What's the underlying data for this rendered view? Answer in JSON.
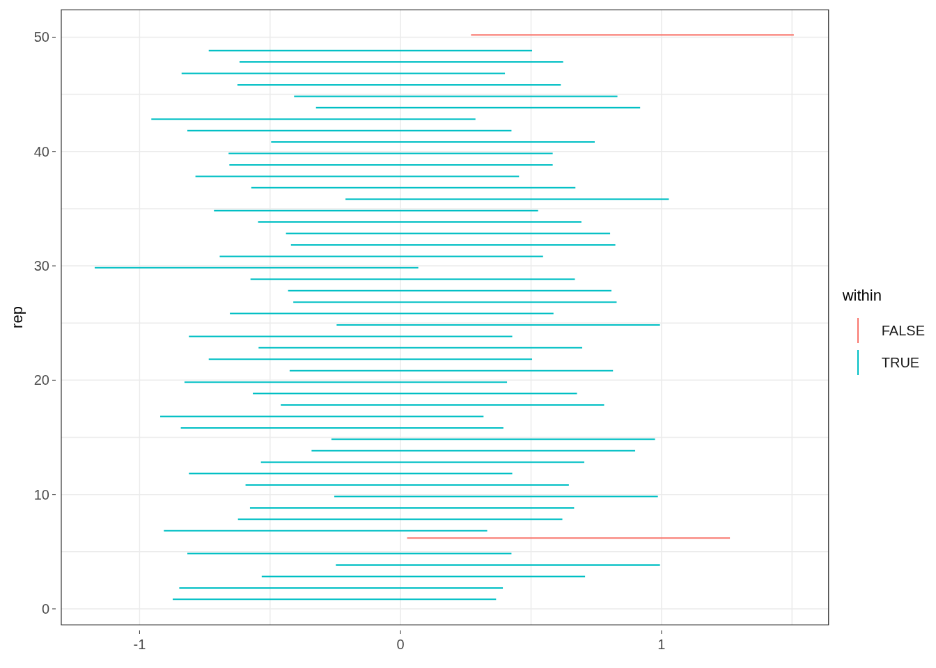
{
  "chart_data": {
    "type": "bar",
    "orientation": "horizontal",
    "ylabel": "rep",
    "legend_title": "within",
    "legend": "right",
    "grid": true,
    "x": [
      1,
      2,
      3,
      4,
      5,
      6,
      7,
      8,
      9,
      10,
      11,
      12,
      13,
      14,
      15,
      16,
      17,
      18,
      19,
      20,
      21,
      22,
      23,
      24,
      25,
      26,
      27,
      28,
      29,
      30,
      31,
      32,
      33,
      34,
      35,
      36,
      37,
      38,
      39,
      40,
      41,
      42,
      43,
      44,
      45,
      46,
      47,
      48,
      49,
      50
    ],
    "xlim": [
      -1.3,
      1.64
    ],
    "ylim": [
      -1.4,
      52.4
    ],
    "xticks": [
      -1,
      {
        "value": -0.5,
        "label": null
      },
      0,
      {
        "value": 0.5,
        "label": null
      },
      1,
      {
        "value": 1.5,
        "label": null
      }
    ],
    "yticks": [
      0,
      {
        "value": 5,
        "label": null
      },
      10,
      {
        "value": 15,
        "label": null
      },
      20,
      {
        "value": 25,
        "label": null
      },
      30,
      {
        "value": 35,
        "label": null
      },
      40,
      {
        "value": 45,
        "label": null
      },
      50
    ],
    "series": [
      {
        "name": "FALSE",
        "color": "#f8766d",
        "base": [
          null,
          null,
          null,
          null,
          null,
          0.025,
          null,
          null,
          null,
          null,
          null,
          null,
          null,
          null,
          null,
          null,
          null,
          null,
          null,
          null,
          null,
          null,
          null,
          null,
          null,
          null,
          null,
          null,
          null,
          null,
          null,
          null,
          null,
          null,
          null,
          null,
          null,
          null,
          null,
          null,
          null,
          null,
          null,
          null,
          null,
          null,
          null,
          null,
          null,
          0.27
        ],
        "values": [
          null,
          null,
          null,
          null,
          null,
          1.237,
          null,
          null,
          null,
          null,
          null,
          null,
          null,
          null,
          null,
          null,
          null,
          null,
          null,
          null,
          null,
          null,
          null,
          null,
          null,
          null,
          null,
          null,
          null,
          null,
          null,
          null,
          null,
          null,
          null,
          null,
          null,
          null,
          null,
          null,
          null,
          null,
          null,
          null,
          null,
          null,
          null,
          null,
          null,
          1.237
        ]
      },
      {
        "name": "TRUE",
        "color": "#00bfc4",
        "base": [
          -0.873,
          -0.848,
          -0.532,
          -0.248,
          -0.817,
          null,
          -0.907,
          -0.623,
          -0.577,
          -0.254,
          -0.594,
          -0.811,
          -0.535,
          -0.341,
          -0.265,
          -0.842,
          -0.921,
          -0.459,
          -0.566,
          -0.828,
          -0.425,
          -0.735,
          -0.544,
          -0.811,
          -0.245,
          -0.654,
          -0.411,
          -0.431,
          -0.575,
          -1.172,
          -0.693,
          -0.42,
          -0.439,
          -0.546,
          -0.715,
          -0.211,
          -0.572,
          -0.786,
          -0.656,
          -0.659,
          -0.496,
          -0.817,
          -0.955,
          -0.324,
          -0.408,
          -0.625,
          -0.839,
          -0.617,
          -0.735,
          null
        ],
        "values": [
          1.239,
          1.24,
          1.239,
          1.242,
          1.242,
          null,
          1.239,
          1.243,
          1.242,
          1.24,
          1.239,
          1.239,
          1.239,
          1.24,
          1.24,
          1.236,
          1.239,
          1.239,
          1.242,
          1.236,
          1.239,
          1.239,
          1.24,
          1.239,
          1.239,
          1.24,
          1.239,
          1.239,
          1.243,
          1.24,
          1.239,
          1.243,
          1.242,
          1.239,
          1.242,
          1.239,
          1.242,
          1.24,
          1.239,
          1.242,
          1.24,
          1.242,
          1.242,
          1.242,
          1.239,
          1.239,
          1.239,
          1.24,
          1.239,
          null
        ]
      }
    ]
  }
}
